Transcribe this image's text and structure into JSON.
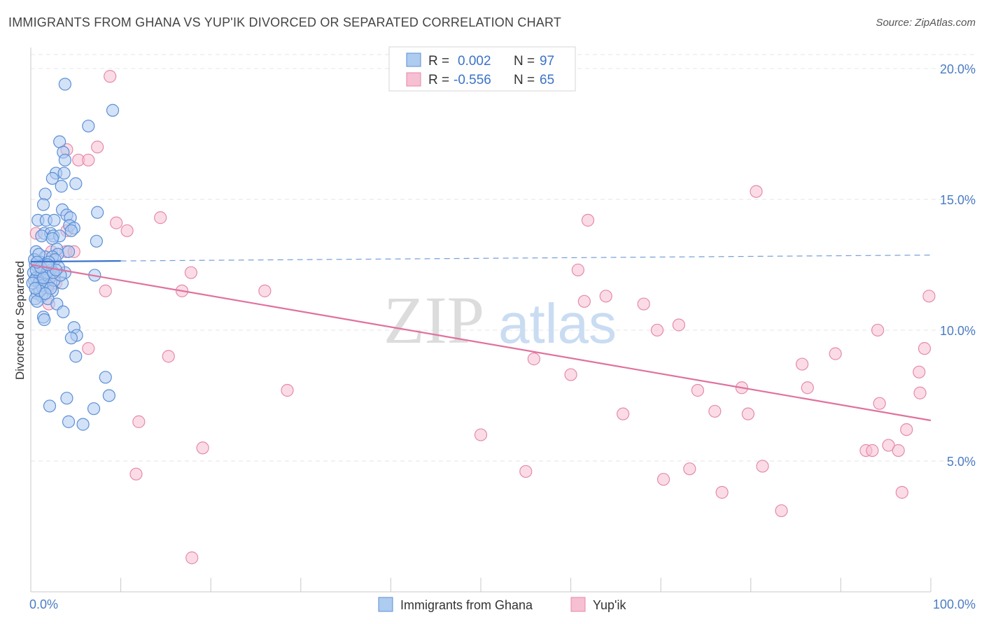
{
  "title": "IMMIGRANTS FROM GHANA VS YUP'IK DIVORCED OR SEPARATED CORRELATION CHART",
  "source": "Source: ZipAtlas.com",
  "watermark": {
    "zip": "ZIP",
    "atlas": "atlas"
  },
  "colors": {
    "blue_fill": "#aecbf0",
    "blue_stroke": "#5b8fd6",
    "blue_line": "#3a73c9",
    "pink_fill": "#f7bfd2",
    "pink_stroke": "#e58aab",
    "pink_line": "#e0719c",
    "tick_text": "#4a7cc4",
    "grid": "#e6e6e6"
  },
  "stats": [
    {
      "r_label": "R =",
      "r_value": "0.002",
      "n_label": "N =",
      "n_value": "97"
    },
    {
      "r_label": "R =",
      "r_value": "-0.556",
      "n_label": "N =",
      "n_value": "65"
    }
  ],
  "legend": [
    "Immigrants from Ghana",
    "Yup'ik"
  ],
  "chart_data": {
    "type": "scatter",
    "title": "IMMIGRANTS FROM GHANA VS YUP'IK DIVORCED OR SEPARATED CORRELATION CHART",
    "xlabel": "",
    "ylabel": "Divorced or Separated",
    "xlim": [
      0,
      100
    ],
    "ylim": [
      0,
      20.8
    ],
    "x_tick_labels": [
      {
        "value": 0,
        "label": "0.0%"
      },
      {
        "value": 100,
        "label": "100.0%"
      }
    ],
    "y_ticks": [
      {
        "value": 5,
        "label": "5.0%"
      },
      {
        "value": 10,
        "label": "10.0%"
      },
      {
        "value": 15,
        "label": "15.0%"
      },
      {
        "value": 20,
        "label": "20.0%"
      }
    ],
    "x_minor_ticks": [
      0,
      10,
      20,
      30,
      40,
      50,
      60,
      70,
      80,
      90,
      100
    ],
    "grid": true,
    "legend_position": "bottom",
    "series": [
      {
        "name": "Immigrants from Ghana",
        "color": "#5b8fd6",
        "trend": {
          "x0": 0,
          "y0": 12.62,
          "x1": 100,
          "y1": 12.87,
          "solid_until": 10
        },
        "points": [
          [
            3.8,
            19.4
          ],
          [
            9.1,
            18.4
          ],
          [
            6.4,
            17.8
          ],
          [
            3.2,
            17.2
          ],
          [
            3.6,
            16.8
          ],
          [
            3.8,
            16.5
          ],
          [
            2.8,
            16.0
          ],
          [
            3.7,
            16.0
          ],
          [
            2.4,
            15.8
          ],
          [
            3.4,
            15.5
          ],
          [
            5.0,
            15.6
          ],
          [
            1.6,
            15.2
          ],
          [
            1.4,
            14.8
          ],
          [
            3.5,
            14.6
          ],
          [
            7.4,
            14.5
          ],
          [
            4.0,
            14.4
          ],
          [
            4.4,
            14.3
          ],
          [
            0.8,
            14.2
          ],
          [
            1.7,
            14.2
          ],
          [
            2.6,
            14.2
          ],
          [
            4.3,
            14.0
          ],
          [
            4.8,
            13.9
          ],
          [
            4.5,
            13.8
          ],
          [
            1.5,
            13.7
          ],
          [
            2.2,
            13.7
          ],
          [
            2.5,
            13.6
          ],
          [
            1.2,
            13.6
          ],
          [
            3.2,
            13.6
          ],
          [
            2.4,
            13.5
          ],
          [
            7.3,
            13.4
          ],
          [
            2.9,
            13.1
          ],
          [
            4.2,
            13.0
          ],
          [
            0.6,
            13.0
          ],
          [
            3.0,
            12.9
          ],
          [
            1.6,
            12.8
          ],
          [
            2.4,
            12.8
          ],
          [
            2.7,
            12.7
          ],
          [
            1.1,
            12.6
          ],
          [
            1.7,
            12.5
          ],
          [
            0.5,
            12.5
          ],
          [
            0.8,
            12.4
          ],
          [
            2.3,
            12.3
          ],
          [
            3.8,
            12.2
          ],
          [
            0.3,
            12.2
          ],
          [
            1.3,
            12.2
          ],
          [
            1.8,
            12.1
          ],
          [
            7.1,
            12.1
          ],
          [
            0.6,
            12.0
          ],
          [
            1.0,
            12.0
          ],
          [
            2.1,
            12.0
          ],
          [
            0.4,
            11.9
          ],
          [
            1.5,
            11.9
          ],
          [
            0.9,
            11.8
          ],
          [
            3.5,
            11.8
          ],
          [
            1.9,
            11.7
          ],
          [
            1.3,
            11.6
          ],
          [
            2.4,
            11.5
          ],
          [
            0.7,
            11.4
          ],
          [
            1.2,
            11.3
          ],
          [
            1.9,
            11.2
          ],
          [
            0.5,
            11.2
          ],
          [
            0.7,
            11.1
          ],
          [
            2.9,
            11.0
          ],
          [
            3.6,
            10.7
          ],
          [
            1.4,
            10.5
          ],
          [
            1.5,
            10.4
          ],
          [
            4.8,
            10.1
          ],
          [
            5.1,
            9.8
          ],
          [
            4.5,
            9.7
          ],
          [
            5.0,
            9.0
          ],
          [
            8.3,
            8.2
          ],
          [
            8.7,
            7.5
          ],
          [
            4.0,
            7.4
          ],
          [
            2.1,
            7.1
          ],
          [
            7.0,
            7.0
          ],
          [
            4.2,
            6.5
          ],
          [
            5.8,
            6.4
          ],
          [
            1.2,
            11.7
          ],
          [
            0.6,
            12.3
          ],
          [
            2.0,
            12.6
          ],
          [
            1.0,
            11.5
          ],
          [
            0.4,
            12.7
          ],
          [
            3.1,
            12.4
          ],
          [
            2.6,
            11.9
          ],
          [
            1.8,
            12.2
          ],
          [
            0.9,
            12.9
          ],
          [
            2.2,
            11.6
          ],
          [
            1.4,
            12.0
          ],
          [
            3.3,
            12.1
          ],
          [
            0.2,
            11.8
          ],
          [
            1.1,
            12.4
          ],
          [
            2.5,
            12.2
          ],
          [
            0.7,
            12.6
          ],
          [
            1.6,
            11.4
          ],
          [
            2.8,
            12.3
          ],
          [
            0.5,
            11.6
          ],
          [
            1.9,
            12.5
          ]
        ]
      },
      {
        "name": "Yup'ik",
        "color": "#e58aab",
        "trend": {
          "x0": 0,
          "y0": 12.5,
          "x1": 100,
          "y1": 6.55
        },
        "points": [
          [
            8.8,
            19.7
          ],
          [
            7.4,
            17.0
          ],
          [
            4.0,
            16.9
          ],
          [
            5.3,
            16.5
          ],
          [
            6.4,
            16.5
          ],
          [
            14.4,
            14.3
          ],
          [
            9.5,
            14.1
          ],
          [
            10.7,
            13.8
          ],
          [
            0.6,
            13.7
          ],
          [
            4.0,
            13.8
          ],
          [
            2.3,
            13.0
          ],
          [
            3.9,
            13.0
          ],
          [
            4.8,
            13.0
          ],
          [
            2.6,
            12.1
          ],
          [
            17.8,
            12.2
          ],
          [
            2.8,
            11.8
          ],
          [
            8.3,
            11.5
          ],
          [
            16.8,
            11.5
          ],
          [
            26.0,
            11.5
          ],
          [
            1.9,
            11.6
          ],
          [
            6.4,
            9.3
          ],
          [
            15.3,
            9.0
          ],
          [
            12.0,
            6.5
          ],
          [
            11.7,
            4.5
          ],
          [
            19.1,
            5.5
          ],
          [
            17.9,
            1.3
          ],
          [
            28.5,
            7.7
          ],
          [
            50.0,
            6.0
          ],
          [
            55.0,
            4.6
          ],
          [
            55.9,
            8.9
          ],
          [
            60.0,
            8.3
          ],
          [
            60.8,
            12.3
          ],
          [
            61.5,
            11.1
          ],
          [
            61.9,
            14.2
          ],
          [
            63.9,
            11.3
          ],
          [
            65.8,
            6.8
          ],
          [
            68.1,
            11.0
          ],
          [
            69.6,
            10.0
          ],
          [
            70.3,
            4.3
          ],
          [
            72.0,
            10.2
          ],
          [
            73.2,
            4.7
          ],
          [
            74.1,
            7.7
          ],
          [
            76.0,
            6.9
          ],
          [
            76.8,
            3.8
          ],
          [
            79.0,
            7.8
          ],
          [
            79.7,
            6.8
          ],
          [
            80.6,
            15.3
          ],
          [
            81.3,
            4.8
          ],
          [
            83.4,
            3.1
          ],
          [
            85.7,
            8.7
          ],
          [
            86.3,
            7.8
          ],
          [
            89.4,
            9.1
          ],
          [
            92.8,
            5.4
          ],
          [
            93.5,
            5.4
          ],
          [
            94.1,
            10.0
          ],
          [
            94.3,
            7.2
          ],
          [
            95.3,
            5.6
          ],
          [
            96.4,
            5.4
          ],
          [
            96.8,
            3.8
          ],
          [
            97.3,
            6.2
          ],
          [
            98.7,
            8.4
          ],
          [
            98.8,
            7.6
          ],
          [
            99.3,
            9.3
          ],
          [
            99.8,
            11.3
          ],
          [
            2.0,
            11.0
          ]
        ]
      }
    ]
  }
}
